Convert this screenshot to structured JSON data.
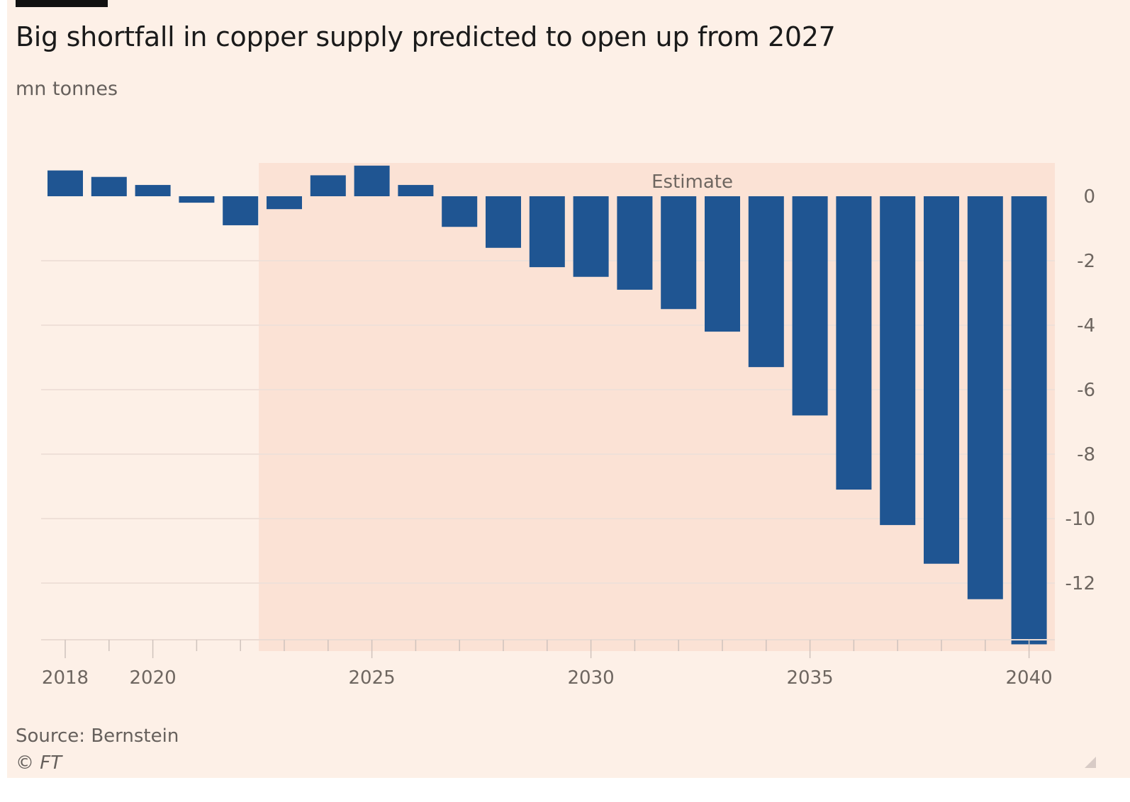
{
  "chart_data": {
    "type": "bar",
    "title": "Big shortfall in copper supply predicted to open up from 2027",
    "subtitle": "mn tonnes",
    "xlabel": "",
    "ylabel": "mn tonnes",
    "categories": [
      "2018",
      "2019",
      "2020",
      "2021",
      "2022",
      "2023",
      "2024",
      "2025",
      "2026",
      "2027",
      "2028",
      "2029",
      "2030",
      "2031",
      "2032",
      "2033",
      "2034",
      "2035",
      "2036",
      "2037",
      "2038",
      "2039",
      "2040"
    ],
    "values": [
      0.8,
      0.6,
      0.35,
      -0.2,
      -0.9,
      -0.4,
      0.65,
      0.95,
      0.35,
      -0.95,
      -1.6,
      -2.2,
      -2.5,
      -2.9,
      -3.5,
      -4.2,
      -5.3,
      -6.8,
      -9.1,
      -10.2,
      -11.4,
      -12.5,
      -13.9
    ],
    "ylim": [
      -14,
      1
    ],
    "yticks": [
      0,
      -2,
      -4,
      -6,
      -8,
      -10,
      -12
    ],
    "ytick_labels": [
      "0",
      "-2",
      "-4",
      "-6",
      "-8",
      "-10",
      "-12"
    ],
    "xtick_labels": [
      "2018",
      "2020",
      "2025",
      "2030",
      "2035",
      "2040"
    ],
    "y_axis_side": "right",
    "grid": true,
    "annotation": {
      "label": "Estimate",
      "shaded_from": 2022.5,
      "shaded_to": 2040
    },
    "colors": {
      "bar": "#1f5592",
      "background": "#fdf0e7",
      "estimate_shade": "#fbe2d5",
      "grid": "#efe0d8"
    },
    "source": "Source: Bernstein",
    "credit": "© FT"
  }
}
